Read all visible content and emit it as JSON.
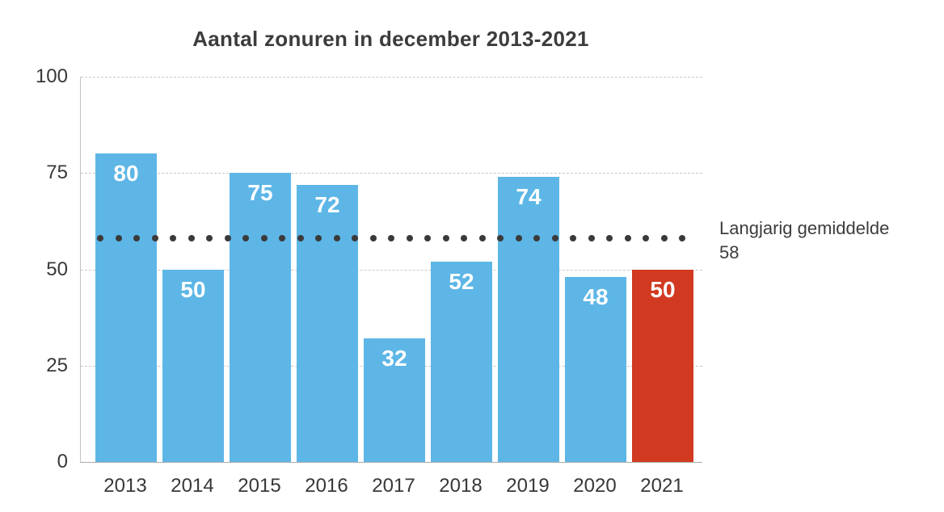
{
  "chart_data": {
    "type": "bar",
    "title": "Aantal zonuren in december 2013-2021",
    "categories": [
      "2013",
      "2014",
      "2015",
      "2016",
      "2017",
      "2018",
      "2019",
      "2020",
      "2021"
    ],
    "values": [
      80,
      50,
      75,
      72,
      32,
      52,
      74,
      48,
      50
    ],
    "xlabel": "",
    "ylabel": "",
    "ylim": [
      0,
      100
    ],
    "yticks": [
      0,
      25,
      50,
      75,
      100
    ],
    "grid": "horizontal-dashed",
    "legend_position": "none",
    "highlight_category": "2021",
    "average_line": {
      "value": 58,
      "style": "dotted",
      "label": "Langjarig gemiddelde",
      "value_label": "58"
    },
    "colors": {
      "bar": "#5db6e6",
      "highlight_bar": "#d13a20",
      "bar_value_text": "#ffffff",
      "average_dots": "#3a3a3a",
      "axis_text": "#383838",
      "title_text": "#3c3c3c",
      "gridline": "#c8c8c8"
    }
  }
}
